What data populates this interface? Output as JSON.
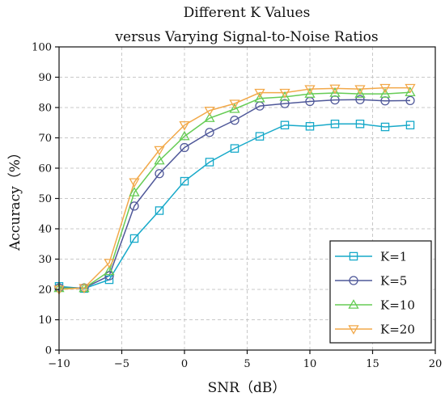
{
  "chart_data": {
    "type": "line",
    "title": "Different K Values",
    "subtitle": "versus Varying Signal-to-Noise Ratios",
    "xlabel": "SNR（dB）",
    "ylabel": "Accuracy（%）",
    "xlim": [
      -10,
      20
    ],
    "ylim": [
      0,
      100
    ],
    "x_ticks": [
      -10,
      -5,
      0,
      5,
      10,
      15,
      20
    ],
    "y_ticks": [
      0,
      10,
      20,
      30,
      40,
      50,
      60,
      70,
      80,
      90,
      100
    ],
    "x_tick_labels": [
      "−10",
      "−5",
      "0",
      "5",
      "10",
      "15",
      "20"
    ],
    "grid": true,
    "legend_position": "bottom-right",
    "x": [
      -10,
      -8,
      -6,
      -4,
      -2,
      0,
      2,
      4,
      6,
      8,
      10,
      12,
      14,
      16,
      18
    ],
    "series": [
      {
        "name": "K=1",
        "marker": "square",
        "color": "#17A9C9",
        "values": [
          21,
          20.3,
          23.2,
          36.8,
          46,
          55.7,
          62,
          66.5,
          70.5,
          74.2,
          73.8,
          74.6,
          74.6,
          73.6,
          74.2
        ]
      },
      {
        "name": "K=5",
        "marker": "circle",
        "color": "#4F5899",
        "values": [
          20.5,
          20.5,
          24.5,
          47.5,
          58.2,
          66.8,
          71.8,
          75.8,
          80.5,
          81.3,
          82,
          82.5,
          82.6,
          82.2,
          82.3
        ]
      },
      {
        "name": "K=10",
        "marker": "triangle-up",
        "color": "#66CC55",
        "values": [
          20.4,
          20.4,
          26,
          52,
          62.5,
          70.5,
          76.5,
          79.5,
          83,
          83.5,
          84.5,
          84.8,
          84.5,
          84.5,
          85
        ]
      },
      {
        "name": "K=20",
        "marker": "triangle-down",
        "color": "#F2A94A",
        "values": [
          20,
          20.5,
          28.8,
          55.4,
          66,
          74.2,
          79,
          81.3,
          84.9,
          84.9,
          86.1,
          86.3,
          86.1,
          86.5,
          86.5
        ]
      }
    ]
  }
}
